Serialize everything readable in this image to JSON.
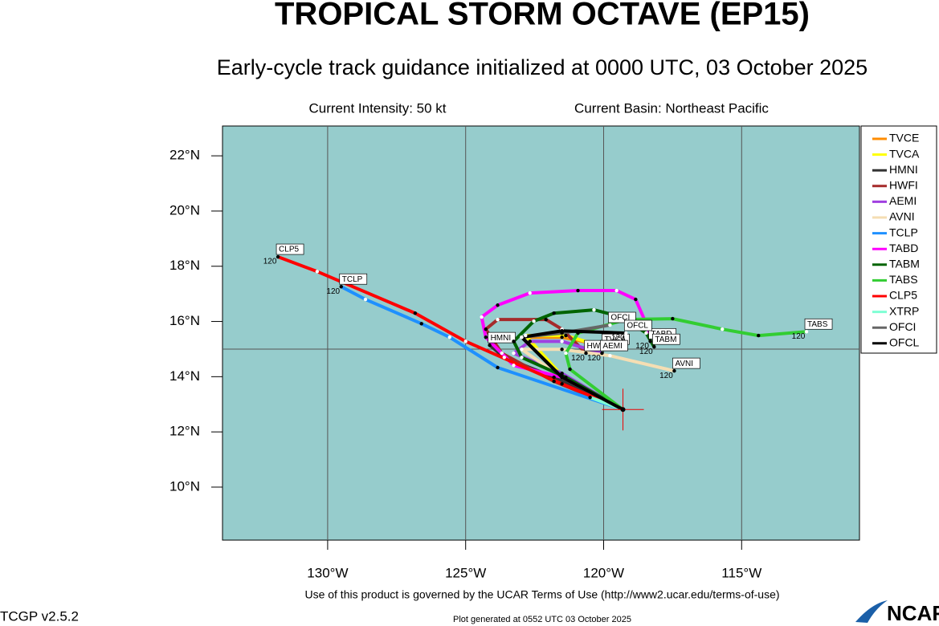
{
  "header": {
    "title": "TROPICAL STORM OCTAVE (EP15)",
    "subtitle": "Early-cycle track guidance initialized at 0000 UTC, 03 October 2025",
    "intensity": "Current Intensity: 50 kt",
    "basin": "Current Basin: Northeast Pacific"
  },
  "map": {
    "xlim": [
      -133.81,
      -110.73
    ],
    "ylim": [
      8.08,
      23.08
    ],
    "xticks": [
      {
        "value": -130,
        "label": "130°W"
      },
      {
        "value": -125,
        "label": "125°W"
      },
      {
        "value": -120,
        "label": "120°W"
      },
      {
        "value": -115,
        "label": "115°W"
      }
    ],
    "yticks": [
      {
        "value": 10,
        "label": "10°N"
      },
      {
        "value": 12,
        "label": "12°N"
      },
      {
        "value": 14,
        "label": "14°N"
      },
      {
        "value": 16,
        "label": "16°N"
      },
      {
        "value": 18,
        "label": "18°N"
      },
      {
        "value": 20,
        "label": "20°N"
      },
      {
        "value": 22,
        "label": "22°N"
      }
    ],
    "hgrid": [
      15
    ],
    "current_position": {
      "lon": -119.3,
      "lat": 12.81
    },
    "tracks": [
      {
        "name": "TVCE",
        "color": "#ff8c00",
        "lon": [
          -119.3,
          -121.51,
          -122.97,
          -121.51,
          -120.06
        ],
        "lat": [
          12.81,
          13.98,
          15.43,
          15.43,
          15.14
        ]
      },
      {
        "name": "TVCA",
        "color": "#ffff00",
        "lon": [
          -119.3,
          -121.51,
          -122.83,
          -121.37,
          -120.0
        ],
        "lat": [
          12.81,
          14.04,
          15.49,
          15.49,
          15.08
        ],
        "box": true
      },
      {
        "name": "HMNI",
        "color": "#333333",
        "lon": [
          -119.3,
          -121.8,
          -123.6,
          -124.13
        ],
        "lat": [
          12.81,
          13.98,
          14.7,
          15.14
        ],
        "box": true
      },
      {
        "name": "HWFI",
        "color": "#a52a2a",
        "lon": [
          -119.3,
          -121.8,
          -123.69,
          -124.27,
          -123.84,
          -122.09,
          -121.51,
          -120.64
        ],
        "lat": [
          12.81,
          13.83,
          14.85,
          15.72,
          16.07,
          16.07,
          15.72,
          14.85
        ],
        "box": true,
        "end_tau": 120
      },
      {
        "name": "AEMI",
        "color": "#a040e0",
        "lon": [
          -119.3,
          -121.51,
          -123.26,
          -122.67,
          -121.51,
          -120.06
        ],
        "lat": [
          12.81,
          14.12,
          14.85,
          15.28,
          15.28,
          14.85
        ],
        "box": true,
        "end_tau": 120
      },
      {
        "name": "AVNI",
        "color": "#f5deb3",
        "lon": [
          -119.3,
          -121.51,
          -122.97,
          -121.51,
          -119.77,
          -117.44
        ],
        "lat": [
          12.81,
          13.98,
          14.99,
          14.99,
          14.76,
          14.21
        ],
        "box": true,
        "end_tau": 120
      },
      {
        "name": "TCLP",
        "color": "#1e90ff",
        "lon": [
          -119.3,
          -123.84,
          -125.58,
          -126.6,
          -128.63,
          -129.51
        ],
        "lat": [
          12.81,
          14.33,
          15.43,
          15.92,
          16.8,
          17.26
        ],
        "box": true,
        "end_tau": 120
      },
      {
        "name": "TABD",
        "color": "#ff00ff",
        "lon": [
          -119.3,
          -121.51,
          -123.26,
          -124.27,
          -124.42,
          -123.84,
          -122.67,
          -120.93,
          -119.53,
          -118.84,
          -118.37,
          -118.31
        ],
        "lat": [
          12.81,
          13.98,
          14.41,
          15.43,
          16.16,
          16.59,
          17.03,
          17.12,
          17.12,
          16.8,
          15.72,
          15.28
        ],
        "box": true,
        "end_tau": 120
      },
      {
        "name": "TABM",
        "color": "#006400",
        "lon": [
          -119.3,
          -121.37,
          -122.97,
          -123.26,
          -122.53,
          -121.8,
          -120.35,
          -119.33,
          -118.46,
          -118.17
        ],
        "lat": [
          12.81,
          13.98,
          14.7,
          15.28,
          16.01,
          16.3,
          16.42,
          16.16,
          15.58,
          15.08
        ],
        "box": true,
        "end_tau": 120
      },
      {
        "name": "TABS",
        "color": "#32cd32",
        "lon": [
          -119.3,
          -121.22,
          -121.37,
          -120.93,
          -119.19,
          -117.5,
          -115.7,
          -114.39,
          -112.65
        ],
        "lat": [
          12.81,
          14.27,
          14.85,
          15.58,
          16.07,
          16.1,
          15.72,
          15.49,
          15.63
        ],
        "box": true,
        "end_tau": 120
      },
      {
        "name": "CLP5",
        "color": "#ff0000",
        "lon": [
          -119.3,
          -121.51,
          -125.0,
          -126.83,
          -130.38,
          -131.8
        ],
        "lat": [
          12.81,
          13.74,
          15.28,
          16.3,
          17.81,
          18.34
        ],
        "box": true,
        "end_tau": 120
      },
      {
        "name": "XTRP",
        "color": "#7fffd4",
        "lon": [
          -119.3,
          -120.49
        ],
        "lat": [
          12.81,
          13.25
        ]
      },
      {
        "name": "OFCI",
        "color": "#666666",
        "lon": [
          -119.3,
          -121.51,
          -122.97,
          -121.51,
          -119.77
        ],
        "lat": [
          12.81,
          13.98,
          15.43,
          15.58,
          15.87
        ],
        "box": true
      },
      {
        "name": "OFCL",
        "color": "#000000",
        "lon": [
          -119.3,
          -121.51,
          -122.97,
          -121.51,
          -119.19
        ],
        "lat": [
          12.81,
          13.98,
          15.43,
          15.66,
          15.58
        ],
        "box": true,
        "end_tau": 120
      }
    ]
  },
  "footer": {
    "terms": "Use of this product is governed by the UCAR Terms of Use (http://www2.ucar.edu/terms-of-use)",
    "version": "TCGP v2.5.2",
    "generated": "Plot generated at 0552 UTC   03 October 2025",
    "logo": "NCAR"
  }
}
